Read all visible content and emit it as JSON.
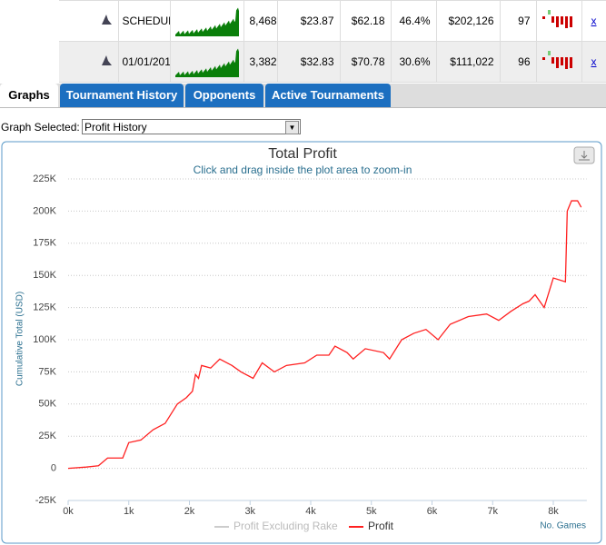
{
  "table": {
    "rows": [
      [
        "SCHEDUL",
        "8,468",
        "$23.87",
        "$62.18",
        "46.4%",
        "$202,126",
        "97",
        "x"
      ],
      [
        "01/01/201",
        "3,382",
        "$32.83",
        "$70.78",
        "30.6%",
        "$111,022",
        "96",
        "x"
      ]
    ]
  },
  "tabs": [
    "Graphs",
    "Tournament History",
    "Opponents",
    "Active Tournaments"
  ],
  "graph_selector": {
    "label": "Graph Selected:",
    "value": "Profit History"
  },
  "chart_data": {
    "type": "line",
    "title": "Total Profit",
    "subtitle": "Click and drag inside the plot area to zoom-in",
    "y_label": "Cumulative Total (USD)",
    "x_label": "No. Games",
    "x": [
      0,
      300,
      500,
      650,
      900,
      1000,
      1200,
      1400,
      1600,
      1800,
      1950,
      2050,
      2100,
      2150,
      2200,
      2350,
      2500,
      2700,
      2850,
      3050,
      3200,
      3400,
      3600,
      3900,
      4100,
      4300,
      4400,
      4600,
      4700,
      4900,
      5200,
      5300,
      5500,
      5700,
      5900,
      6100,
      6300,
      6600,
      6900,
      7100,
      7300,
      7500,
      7600,
      7700,
      7850,
      8000,
      8200,
      8230,
      8300,
      8400,
      8460
    ],
    "series": [
      {
        "name": "Profit Excluding Rake",
        "color": "#cccccc",
        "visible": false
      },
      {
        "name": "Profit",
        "color": "#ff2020",
        "values": [
          0,
          1000,
          2000,
          8000,
          8000,
          20000,
          22000,
          30000,
          35000,
          50000,
          55000,
          60000,
          73000,
          70000,
          80000,
          78000,
          85000,
          80000,
          75000,
          70000,
          82000,
          75000,
          80000,
          82000,
          88000,
          88000,
          95000,
          90000,
          85000,
          93000,
          90000,
          85000,
          100000,
          105000,
          108000,
          100000,
          112000,
          118000,
          120000,
          115000,
          122000,
          128000,
          130000,
          135000,
          125000,
          148000,
          145000,
          200000,
          208000,
          208000,
          203000
        ]
      }
    ],
    "xlim": [
      0,
      8550
    ],
    "ylim": [
      -25000,
      225000
    ],
    "xticks": [
      {
        "value": 0,
        "label": "0k"
      },
      {
        "value": 1000,
        "label": "1k"
      },
      {
        "value": 2000,
        "label": "2k"
      },
      {
        "value": 3000,
        "label": "3k"
      },
      {
        "value": 4000,
        "label": "4k"
      },
      {
        "value": 5000,
        "label": "5k"
      },
      {
        "value": 6000,
        "label": "6k"
      },
      {
        "value": 7000,
        "label": "7k"
      },
      {
        "value": 8000,
        "label": "8k"
      }
    ],
    "yticks": [
      {
        "value": -25000,
        "label": "-25K"
      },
      {
        "value": 0,
        "label": "0"
      },
      {
        "value": 25000,
        "label": "25K"
      },
      {
        "value": 50000,
        "label": "50K"
      },
      {
        "value": 75000,
        "label": "75K"
      },
      {
        "value": 100000,
        "label": "100K"
      },
      {
        "value": 125000,
        "label": "125K"
      },
      {
        "value": 150000,
        "label": "150K"
      },
      {
        "value": 175000,
        "label": "175K"
      },
      {
        "value": 200000,
        "label": "200K"
      },
      {
        "value": 225000,
        "label": "225K"
      }
    ],
    "grid": true
  }
}
